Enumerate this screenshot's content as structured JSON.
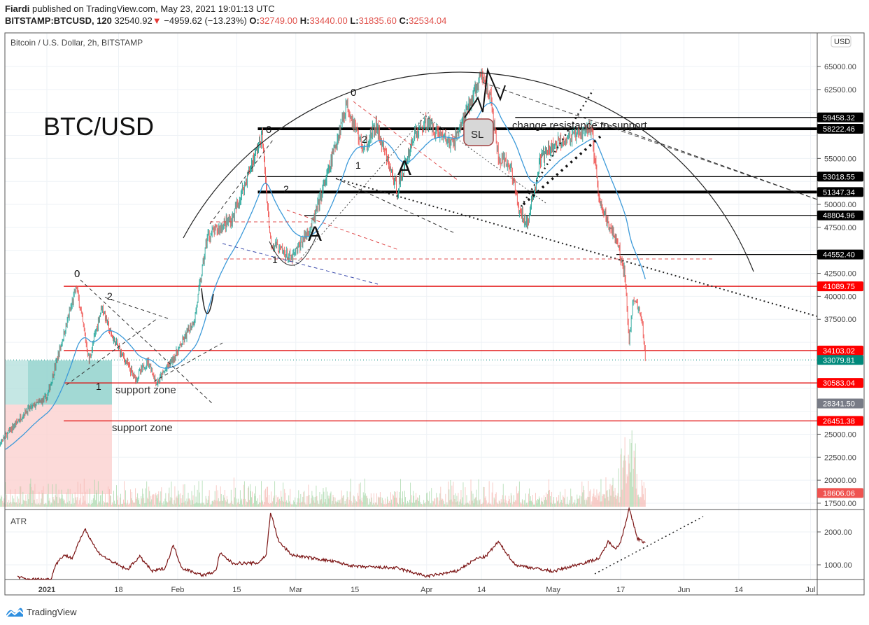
{
  "header": {
    "author": "Fiardi",
    "published": "published on TradingView.com, May 23, 2021 19:01:13 UTC",
    "symbol": "BITSTAMP:BTCUSD, 120",
    "last": "32540.92",
    "change": "−4959.62 (−13.23%)",
    "change_direction_icon": "triangle-down-icon",
    "o_label": "O:",
    "o": "32749.00",
    "h_label": "H:",
    "h": "33440.00",
    "l_label": "L:",
    "l": "31835.60",
    "c_label": "C:",
    "c": "32534.04"
  },
  "footer": {
    "brand": "TradingView",
    "logo_icon": "tradingview-logo-icon"
  },
  "colors": {
    "up": "#26a69a",
    "down": "#ef5350",
    "ma": "#3d9ad9",
    "atr": "#7b1414",
    "level_red": "#e00000",
    "level_black": "#000000",
    "current": "#00897b",
    "grid": "#eef2f6"
  },
  "chart_data": {
    "type": "candlestick",
    "title": "Bitcoin / U.S. Dollar, 2h, BITSTAMP",
    "currency_label": "USD",
    "ylim": [
      17500,
      67500
    ],
    "y_ticks": [
      "65000.00",
      "62500.00",
      "55000.00",
      "50000.00",
      "47500.00",
      "42500.00",
      "40000.00",
      "37500.00",
      "25000.00",
      "22500.00",
      "20000.00",
      "17500.00"
    ],
    "x_ticks": [
      [
        "2021-01-01",
        "2021"
      ],
      [
        "2021-01-18",
        "18"
      ],
      [
        "2021-02-01",
        "Feb"
      ],
      [
        "2021-02-15",
        "15"
      ],
      [
        "2021-03-01",
        "Mar"
      ],
      [
        "2021-03-15",
        "15"
      ],
      [
        "2021-04-01",
        "Apr"
      ],
      [
        "2021-04-14",
        "14"
      ],
      [
        "2021-05-01",
        "May"
      ],
      [
        "2021-05-17",
        "17"
      ],
      [
        "2021-06-01",
        "Jun"
      ],
      [
        "2021-06-14",
        "14"
      ],
      [
        "2021-07-01",
        "Jul"
      ]
    ],
    "price_path": [
      [
        "2020-12-19",
        23000
      ],
      [
        "2020-12-27",
        27500
      ],
      [
        "2021-01-01",
        29000
      ],
      [
        "2021-01-08",
        41000
      ],
      [
        "2021-01-11",
        33000
      ],
      [
        "2021-01-14",
        39000
      ],
      [
        "2021-01-16",
        36000
      ],
      [
        "2021-01-22",
        31000
      ],
      [
        "2021-01-25",
        33000
      ],
      [
        "2021-01-27",
        30500
      ],
      [
        "2021-02-01",
        34000
      ],
      [
        "2021-02-05",
        37500
      ],
      [
        "2021-02-08",
        46500
      ],
      [
        "2021-02-14",
        48500
      ],
      [
        "2021-02-19",
        55000
      ],
      [
        "2021-02-21",
        57500
      ],
      [
        "2021-02-23",
        46000
      ],
      [
        "2021-02-28",
        44000
      ],
      [
        "2021-03-05",
        48000
      ],
      [
        "2021-03-09",
        54000
      ],
      [
        "2021-03-13",
        61000
      ],
      [
        "2021-03-17",
        56000
      ],
      [
        "2021-03-20",
        58500
      ],
      [
        "2021-03-25",
        51500
      ],
      [
        "2021-03-29",
        57500
      ],
      [
        "2021-04-01",
        59000
      ],
      [
        "2021-04-07",
        56500
      ],
      [
        "2021-04-10",
        59500
      ],
      [
        "2021-04-14",
        64000
      ],
      [
        "2021-04-16",
        62000
      ],
      [
        "2021-04-18",
        55000
      ],
      [
        "2021-04-21",
        54000
      ],
      [
        "2021-04-23",
        49000
      ],
      [
        "2021-04-25",
        48000
      ],
      [
        "2021-04-28",
        55000
      ],
      [
        "2021-05-03",
        57000
      ],
      [
        "2021-05-07",
        57500
      ],
      [
        "2021-05-10",
        58500
      ],
      [
        "2021-05-12",
        50000
      ],
      [
        "2021-05-16",
        46000
      ],
      [
        "2021-05-18",
        42500
      ],
      [
        "2021-05-19",
        35000
      ],
      [
        "2021-05-20",
        40000
      ],
      [
        "2021-05-22",
        37500
      ],
      [
        "2021-05-23",
        32540
      ]
    ],
    "levels": [
      {
        "price": 59458.32,
        "label": "59458.32",
        "color": "#000000",
        "from": "2021-04-22",
        "weight": "thin"
      },
      {
        "price": 58222.46,
        "label": "58222.46",
        "color": "#000000",
        "from": "2021-02-20",
        "weight": "thick"
      },
      {
        "price": 53018.55,
        "label": "53018.55",
        "color": "#000000",
        "from": "2021-02-20",
        "weight": "thin"
      },
      {
        "price": 51347.34,
        "label": "51347.34",
        "color": "#000000",
        "from": "2021-02-20",
        "weight": "thick"
      },
      {
        "price": 48804.96,
        "label": "48804.96",
        "color": "#000000",
        "from": "2021-03-03",
        "weight": "thin"
      },
      {
        "price": 44552.4,
        "label": "44552.40",
        "color": "#000000",
        "from": "2021-05-16",
        "weight": "thin"
      },
      {
        "price": 41089.75,
        "label": "41089.75",
        "color": "#e00000",
        "from": "2021-01-05",
        "weight": "thin"
      },
      {
        "price": 34103.02,
        "label": "34103.02",
        "color": "#e00000",
        "from": "2021-01-05",
        "weight": "thin"
      },
      {
        "price": 30583.04,
        "label": "30583.04",
        "color": "#e00000",
        "from": "2021-01-05",
        "weight": "thin"
      },
      {
        "price": 26451.38,
        "label": "26451.38",
        "color": "#e00000",
        "from": "2021-01-05",
        "weight": "thin"
      }
    ],
    "price_tags": [
      {
        "price": 33079.81,
        "label": "33079.81",
        "color": "#00897b"
      },
      {
        "price": 28341.5,
        "label": "28341.50",
        "color": "#787b86"
      },
      {
        "price": 18606.06,
        "label": "18606.06",
        "color": "#ef5350"
      }
    ],
    "annotations": {
      "big_title": "BTC/USD",
      "support_zone_1": "support zone",
      "support_zone_2": "support zone",
      "resistance_note": "change resistance to support",
      "stop_loss": "SL",
      "wave_labels": [
        "0",
        "2",
        "1",
        "0",
        "2",
        "1",
        "0",
        "2",
        "1",
        "A",
        "A"
      ]
    },
    "atr": {
      "label": "ATR",
      "ylim": [
        550,
        2700
      ],
      "y_ticks": [
        "2000.00",
        "1000.00"
      ],
      "path": [
        [
          "2020-12-25",
          650
        ],
        [
          "2020-12-27",
          560
        ],
        [
          "2021-01-02",
          560
        ],
        [
          "2021-01-03",
          1000
        ],
        [
          "2021-01-05",
          1300
        ],
        [
          "2021-01-07",
          1200
        ],
        [
          "2021-01-08",
          1500
        ],
        [
          "2021-01-10",
          2100
        ],
        [
          "2021-01-13",
          1400
        ],
        [
          "2021-01-15",
          1200
        ],
        [
          "2021-01-20",
          850
        ],
        [
          "2021-01-23",
          1250
        ],
        [
          "2021-01-26",
          800
        ],
        [
          "2021-01-29",
          900
        ],
        [
          "2021-01-31",
          1600
        ],
        [
          "2021-02-02",
          900
        ],
        [
          "2021-02-07",
          680
        ],
        [
          "2021-02-10",
          800
        ],
        [
          "2021-02-11",
          1350
        ],
        [
          "2021-02-14",
          1050
        ],
        [
          "2021-02-20",
          1050
        ],
        [
          "2021-02-22",
          1300
        ],
        [
          "2021-02-23",
          2600
        ],
        [
          "2021-02-25",
          1700
        ],
        [
          "2021-02-28",
          1300
        ],
        [
          "2021-03-10",
          1100
        ],
        [
          "2021-03-15",
          950
        ],
        [
          "2021-03-25",
          900
        ],
        [
          "2021-04-01",
          650
        ],
        [
          "2021-04-08",
          800
        ],
        [
          "2021-04-13",
          1200
        ],
        [
          "2021-04-15",
          1250
        ],
        [
          "2021-04-18",
          1700
        ],
        [
          "2021-04-22",
          1000
        ],
        [
          "2021-05-01",
          800
        ],
        [
          "2021-05-08",
          1050
        ],
        [
          "2021-05-12",
          1200
        ],
        [
          "2021-05-14",
          1700
        ],
        [
          "2021-05-16",
          1500
        ],
        [
          "2021-05-17",
          1700
        ],
        [
          "2021-05-19",
          2700
        ],
        [
          "2021-05-21",
          1800
        ],
        [
          "2021-05-23",
          1650
        ]
      ]
    }
  }
}
